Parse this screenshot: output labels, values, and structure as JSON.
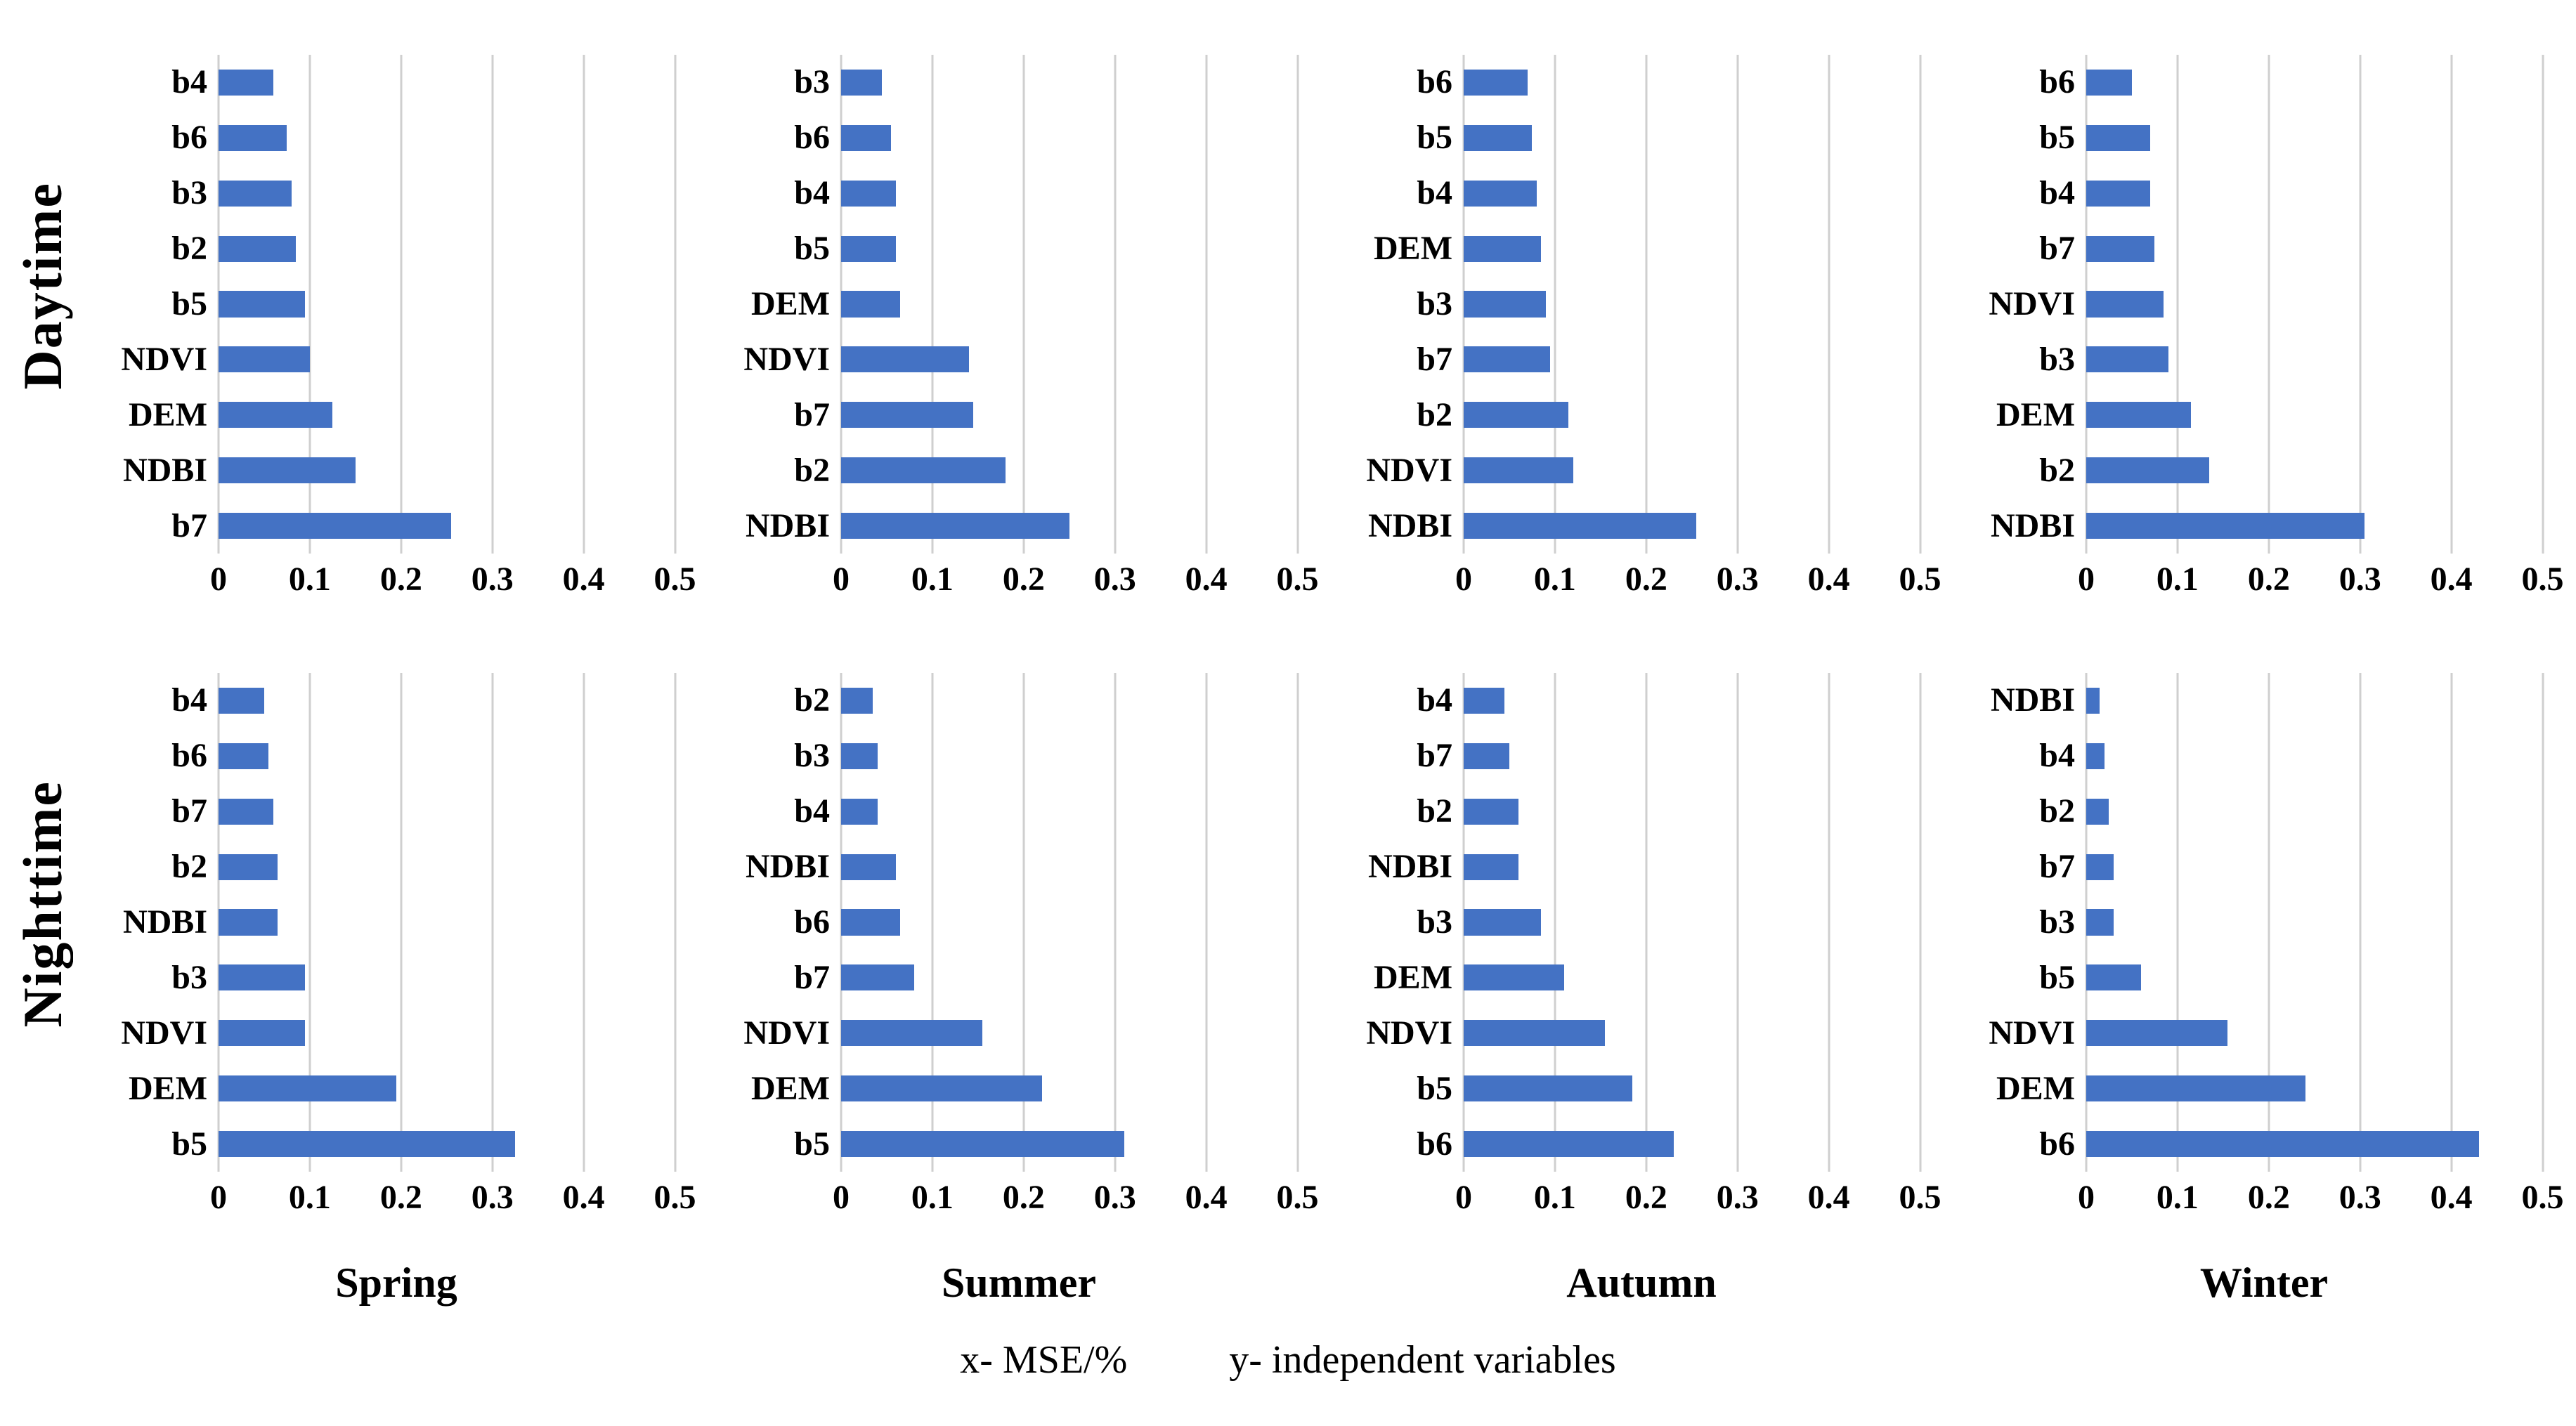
{
  "figure": {
    "row_labels": [
      "Daytime",
      "Nighttime"
    ],
    "season_labels": [
      "Spring",
      "Summer",
      "Autumn",
      "Winter"
    ],
    "footer": {
      "x_note": "x- MSE/%",
      "y_note": "y- independent variables"
    },
    "colors": {
      "bar": "#4472C4",
      "gridline": "#CFCFCF",
      "text": "#000000"
    }
  },
  "chart_data": [
    {
      "type": "bar",
      "orientation": "horizontal",
      "row": "Daytime",
      "season": "Spring",
      "categories": [
        "b4",
        "b6",
        "b3",
        "b2",
        "b5",
        "NDVI",
        "DEM",
        "NDBI",
        "b7"
      ],
      "values": [
        0.06,
        0.075,
        0.08,
        0.085,
        0.095,
        0.1,
        0.125,
        0.15,
        0.255
      ],
      "xlim": [
        0,
        0.5
      ],
      "xticks": [
        0,
        0.1,
        0.2,
        0.3,
        0.4,
        0.5
      ],
      "xtick_labels": [
        "0",
        "0.1",
        "0.2",
        "0.3",
        "0.4",
        "0.5"
      ],
      "grid": true
    },
    {
      "type": "bar",
      "orientation": "horizontal",
      "row": "Daytime",
      "season": "Summer",
      "categories": [
        "b3",
        "b6",
        "b4",
        "b5",
        "DEM",
        "NDVI",
        "b7",
        "b2",
        "NDBI"
      ],
      "values": [
        0.045,
        0.055,
        0.06,
        0.06,
        0.065,
        0.14,
        0.145,
        0.18,
        0.25
      ],
      "xlim": [
        0,
        0.5
      ],
      "xticks": [
        0,
        0.1,
        0.2,
        0.3,
        0.4,
        0.5
      ],
      "xtick_labels": [
        "0",
        "0.1",
        "0.2",
        "0.3",
        "0.4",
        "0.5"
      ],
      "grid": true
    },
    {
      "type": "bar",
      "orientation": "horizontal",
      "row": "Daytime",
      "season": "Autumn",
      "categories": [
        "b6",
        "b5",
        "b4",
        "DEM",
        "b3",
        "b7",
        "b2",
        "NDVI",
        "NDBI"
      ],
      "values": [
        0.07,
        0.075,
        0.08,
        0.085,
        0.09,
        0.095,
        0.115,
        0.12,
        0.255
      ],
      "xlim": [
        0,
        0.5
      ],
      "xticks": [
        0,
        0.1,
        0.2,
        0.3,
        0.4,
        0.5
      ],
      "xtick_labels": [
        "0",
        "0.1",
        "0.2",
        "0.3",
        "0.4",
        "0.5"
      ],
      "grid": true
    },
    {
      "type": "bar",
      "orientation": "horizontal",
      "row": "Daytime",
      "season": "Winter",
      "categories": [
        "b6",
        "b5",
        "b4",
        "b7",
        "NDVI",
        "b3",
        "DEM",
        "b2",
        "NDBI"
      ],
      "values": [
        0.05,
        0.07,
        0.07,
        0.075,
        0.085,
        0.09,
        0.115,
        0.135,
        0.305
      ],
      "xlim": [
        0,
        0.5
      ],
      "xticks": [
        0,
        0.1,
        0.2,
        0.3,
        0.4,
        0.5
      ],
      "xtick_labels": [
        "0",
        "0.1",
        "0.2",
        "0.3",
        "0.4",
        "0.5"
      ],
      "grid": true
    },
    {
      "type": "bar",
      "orientation": "horizontal",
      "row": "Nighttime",
      "season": "Spring",
      "categories": [
        "b4",
        "b6",
        "b7",
        "b2",
        "NDBI",
        "b3",
        "NDVI",
        "DEM",
        "b5"
      ],
      "values": [
        0.05,
        0.055,
        0.06,
        0.065,
        0.065,
        0.095,
        0.095,
        0.195,
        0.325
      ],
      "xlim": [
        0,
        0.5
      ],
      "xticks": [
        0,
        0.1,
        0.2,
        0.3,
        0.4,
        0.5
      ],
      "xtick_labels": [
        "0",
        "0.1",
        "0.2",
        "0.3",
        "0.4",
        "0.5"
      ],
      "grid": true
    },
    {
      "type": "bar",
      "orientation": "horizontal",
      "row": "Nighttime",
      "season": "Summer",
      "categories": [
        "b2",
        "b3",
        "b4",
        "NDBI",
        "b6",
        "b7",
        "NDVI",
        "DEM",
        "b5"
      ],
      "values": [
        0.035,
        0.04,
        0.04,
        0.06,
        0.065,
        0.08,
        0.155,
        0.22,
        0.31
      ],
      "xlim": [
        0,
        0.5
      ],
      "xticks": [
        0,
        0.1,
        0.2,
        0.3,
        0.4,
        0.5
      ],
      "xtick_labels": [
        "0",
        "0.1",
        "0.2",
        "0.3",
        "0.4",
        "0.5"
      ],
      "grid": true
    },
    {
      "type": "bar",
      "orientation": "horizontal",
      "row": "Nighttime",
      "season": "Autumn",
      "categories": [
        "b4",
        "b7",
        "b2",
        "NDBI",
        "b3",
        "DEM",
        "NDVI",
        "b5",
        "b6"
      ],
      "values": [
        0.045,
        0.05,
        0.06,
        0.06,
        0.085,
        0.11,
        0.155,
        0.185,
        0.23
      ],
      "xlim": [
        0,
        0.5
      ],
      "xticks": [
        0,
        0.1,
        0.2,
        0.3,
        0.4,
        0.5
      ],
      "xtick_labels": [
        "0",
        "0.1",
        "0.2",
        "0.3",
        "0.4",
        "0.5"
      ],
      "grid": true
    },
    {
      "type": "bar",
      "orientation": "horizontal",
      "row": "Nighttime",
      "season": "Winter",
      "categories": [
        "NDBI",
        "b4",
        "b2",
        "b7",
        "b3",
        "b5",
        "NDVI",
        "DEM",
        "b6"
      ],
      "values": [
        0.015,
        0.02,
        0.025,
        0.03,
        0.03,
        0.06,
        0.155,
        0.24,
        0.43
      ],
      "xlim": [
        0,
        0.5
      ],
      "xticks": [
        0,
        0.1,
        0.2,
        0.3,
        0.4,
        0.5
      ],
      "xtick_labels": [
        "0",
        "0.1",
        "0.2",
        "0.3",
        "0.4",
        "0.5"
      ],
      "grid": true
    }
  ]
}
